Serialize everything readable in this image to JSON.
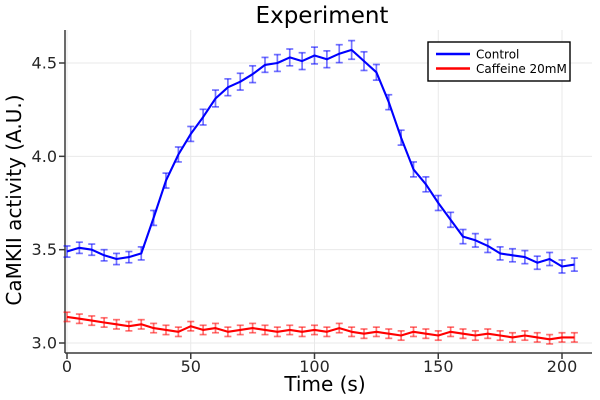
{
  "title": "Experiment",
  "axes": {
    "xlabel": "Time (s)",
    "ylabel": "CaMKII activity (A.U.)",
    "xtick_labels": [
      "0",
      "50",
      "100",
      "150",
      "200"
    ],
    "xtick_values": [
      0,
      50,
      100,
      150,
      200
    ],
    "ytick_labels": [
      "3.0",
      "3.5",
      "4.0",
      "4.5"
    ],
    "ytick_values": [
      3.0,
      3.5,
      4.0,
      4.5
    ]
  },
  "legend": {
    "position": "top-right",
    "entries": [
      {
        "label": "Control",
        "color": "#0000ff"
      },
      {
        "label": "Caffeine 20mM",
        "color": "#ff0000"
      }
    ]
  },
  "colors": {
    "control": "#0000ff",
    "caffeine": "#ff0000",
    "grid": "#e9e9e9",
    "axis": "#3a3a3a",
    "tick_text": "#262626",
    "background": "#ffffff",
    "legend_border": "#000000"
  },
  "chart_data": {
    "type": "line",
    "title": "Experiment",
    "xlabel": "Time (s)",
    "ylabel": "CaMKII activity (A.U.)",
    "grid": true,
    "error_bars": true,
    "markers": "none",
    "legend_position": "top-right",
    "xlim": [
      -1,
      212
    ],
    "ylim": [
      2.95,
      4.68
    ],
    "x": [
      0,
      5,
      10,
      15,
      20,
      25,
      30,
      35,
      40,
      45,
      50,
      55,
      60,
      65,
      70,
      75,
      80,
      85,
      90,
      95,
      100,
      105,
      110,
      115,
      120,
      125,
      130,
      135,
      140,
      145,
      150,
      155,
      160,
      165,
      170,
      175,
      180,
      185,
      190,
      195,
      200,
      205
    ],
    "series": [
      {
        "name": "Control",
        "color": "#0000ff",
        "values": [
          3.49,
          3.51,
          3.5,
          3.47,
          3.45,
          3.46,
          3.48,
          3.67,
          3.87,
          4.01,
          4.12,
          4.21,
          4.31,
          4.37,
          4.4,
          4.44,
          4.49,
          4.5,
          4.53,
          4.51,
          4.54,
          4.52,
          4.55,
          4.57,
          4.51,
          4.45,
          4.29,
          4.1,
          3.93,
          3.85,
          3.75,
          3.66,
          3.57,
          3.55,
          3.52,
          3.48,
          3.47,
          3.46,
          3.43,
          3.45,
          3.41,
          3.42
        ],
        "errors": [
          0.03,
          0.03,
          0.03,
          0.03,
          0.03,
          0.03,
          0.035,
          0.04,
          0.04,
          0.04,
          0.04,
          0.042,
          0.045,
          0.045,
          0.045,
          0.045,
          0.04,
          0.045,
          0.045,
          0.045,
          0.045,
          0.045,
          0.048,
          0.05,
          0.05,
          0.042,
          0.04,
          0.04,
          0.04,
          0.04,
          0.04,
          0.04,
          0.038,
          0.036,
          0.035,
          0.035,
          0.035,
          0.035,
          0.035,
          0.035,
          0.035,
          0.035
        ]
      },
      {
        "name": "Caffeine 20mM",
        "color": "#ff0000",
        "values": [
          3.14,
          3.13,
          3.12,
          3.11,
          3.1,
          3.09,
          3.1,
          3.08,
          3.07,
          3.06,
          3.09,
          3.07,
          3.08,
          3.06,
          3.07,
          3.08,
          3.07,
          3.06,
          3.07,
          3.06,
          3.07,
          3.06,
          3.08,
          3.06,
          3.05,
          3.06,
          3.05,
          3.04,
          3.06,
          3.05,
          3.04,
          3.06,
          3.05,
          3.04,
          3.05,
          3.04,
          3.03,
          3.04,
          3.03,
          3.02,
          3.03,
          3.03
        ],
        "errors": [
          0.025,
          0.025,
          0.025,
          0.025,
          0.025,
          0.025,
          0.025,
          0.025,
          0.025,
          0.025,
          0.025,
          0.025,
          0.025,
          0.025,
          0.025,
          0.025,
          0.025,
          0.025,
          0.025,
          0.025,
          0.025,
          0.025,
          0.025,
          0.025,
          0.025,
          0.025,
          0.025,
          0.025,
          0.025,
          0.025,
          0.025,
          0.025,
          0.025,
          0.025,
          0.025,
          0.025,
          0.025,
          0.025,
          0.025,
          0.025,
          0.025,
          0.025
        ]
      }
    ]
  }
}
